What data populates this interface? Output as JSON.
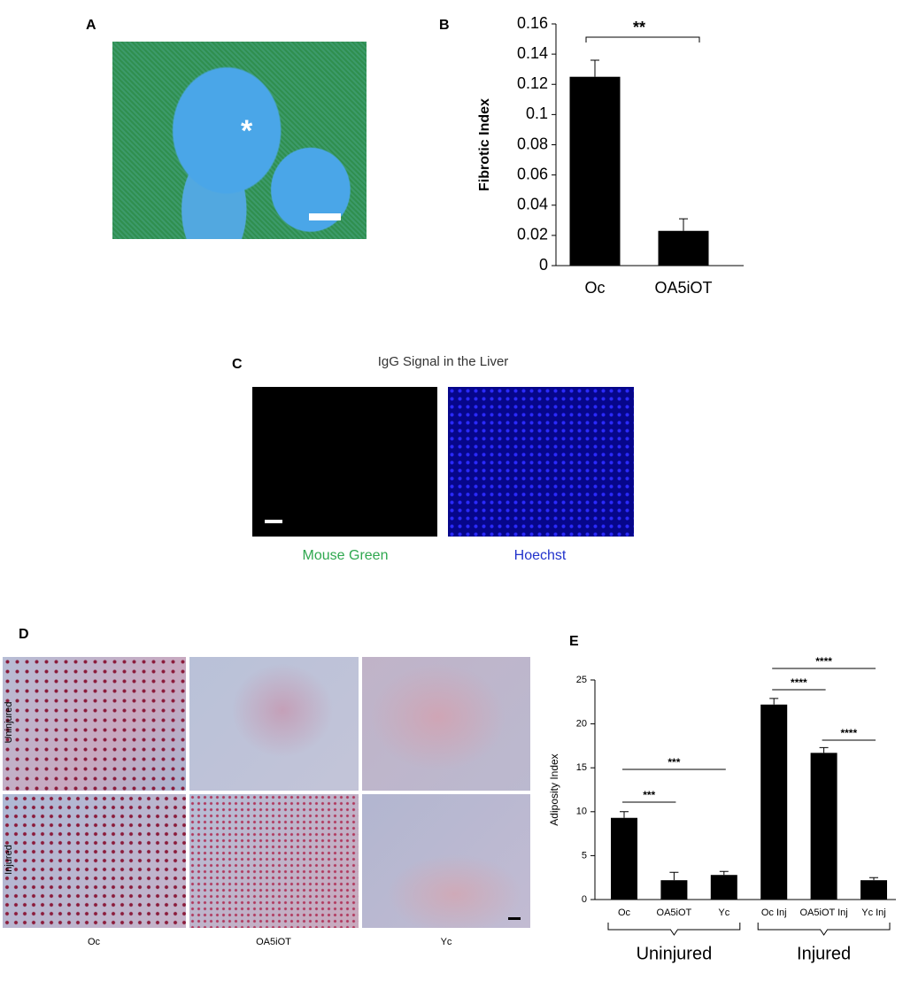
{
  "panels": {
    "A": {
      "label": "A",
      "marker": "*"
    },
    "B": {
      "label": "B"
    },
    "C": {
      "label": "C",
      "title": "IgG Signal in the Liver",
      "captions": [
        "Mouse Green",
        "Hoechst"
      ]
    },
    "D": {
      "label": "D",
      "rows": [
        "Uninjured",
        "Injured"
      ],
      "columns": [
        "Oc",
        "OA5iOT",
        "Yc"
      ]
    },
    "E": {
      "label": "E"
    }
  },
  "chart_data": [
    {
      "type": "bar",
      "y_label": "Fibrotic Index",
      "categories": [
        "Oc",
        "OA5iOT"
      ],
      "values": [
        0.125,
        0.023
      ],
      "errors": [
        0.011,
        0.008
      ],
      "color": "#000000",
      "ylim": [
        0,
        0.16
      ],
      "yticks": [
        0,
        0.02,
        0.04,
        0.06,
        0.08,
        0.1,
        0.12,
        0.14,
        0.16
      ],
      "annotations": [
        {
          "text": "**",
          "from": 0,
          "to": 1
        }
      ]
    },
    {
      "type": "bar",
      "y_label": "Adiposity Index",
      "categories": [
        "Oc",
        "OA5iOT",
        "Yc",
        "Oc Inj",
        "OA5iOT Inj",
        "Yc Inj"
      ],
      "values": [
        9.3,
        2.2,
        2.8,
        22.2,
        16.7,
        2.2
      ],
      "errors": [
        0.7,
        0.9,
        0.4,
        0.7,
        0.6,
        0.3
      ],
      "color": "#000000",
      "ylim": [
        0,
        25
      ],
      "yticks": [
        0,
        5,
        10,
        15,
        20,
        25
      ],
      "annotations": [
        {
          "text": "***",
          "from": 0,
          "to": 1
        },
        {
          "text": "***",
          "from": 0,
          "to": 2
        },
        {
          "text": "****",
          "from": 3,
          "to": 4
        },
        {
          "text": "****",
          "from": 3,
          "to": 5
        },
        {
          "text": "****",
          "from": 4,
          "to": 5
        }
      ],
      "groups": [
        {
          "name": "Uninjured",
          "from": 0,
          "to": 2
        },
        {
          "name": "Injured",
          "from": 3,
          "to": 5
        }
      ]
    }
  ]
}
